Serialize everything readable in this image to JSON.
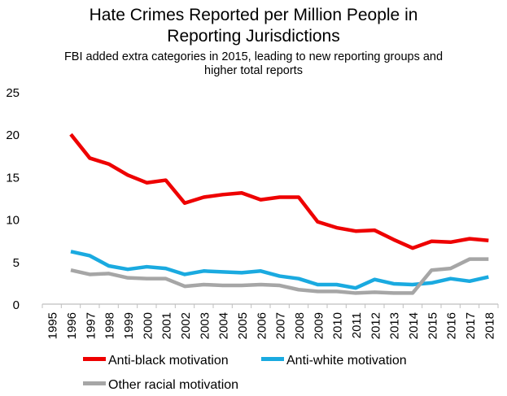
{
  "chart_data": {
    "type": "line",
    "title_line1": "Hate Crimes Reported per Million People in",
    "title_line2": "Reporting Jurisdictions",
    "subtitle_line1": "FBI added extra categories in 2015, leading to new reporting groups and",
    "subtitle_line2": "higher total reports",
    "x": [
      "1995",
      "1996",
      "1997",
      "1998",
      "1999",
      "2000",
      "2001",
      "2002",
      "2003",
      "2004",
      "2005",
      "2006",
      "2007",
      "2008",
      "2009",
      "2010",
      "2011",
      "2012",
      "2013",
      "2014",
      "2015",
      "2016",
      "2017",
      "2018"
    ],
    "ylim": [
      0,
      25
    ],
    "yticks": [
      0,
      5,
      10,
      15,
      20,
      25
    ],
    "grid": false,
    "legend_position": "bottom",
    "series": [
      {
        "name": "Anti-black motivation",
        "color": "#ee0000",
        "values": [
          null,
          20.0,
          17.2,
          16.5,
          15.2,
          14.3,
          14.6,
          11.9,
          12.6,
          12.9,
          13.1,
          12.3,
          12.6,
          12.6,
          9.7,
          9.0,
          8.6,
          8.7,
          7.6,
          6.6,
          7.4,
          7.3,
          7.7,
          7.5
        ]
      },
      {
        "name": "Anti-white motivation",
        "color": "#1aaae0",
        "values": [
          null,
          6.2,
          5.7,
          4.5,
          4.1,
          4.4,
          4.2,
          3.5,
          3.9,
          3.8,
          3.7,
          3.9,
          3.3,
          3.0,
          2.3,
          2.3,
          1.9,
          2.9,
          2.4,
          2.3,
          2.5,
          3.0,
          2.7,
          3.2
        ]
      },
      {
        "name": "Other racial motivation",
        "color": "#a6a6a6",
        "values": [
          null,
          4.0,
          3.5,
          3.6,
          3.1,
          3.0,
          3.0,
          2.1,
          2.3,
          2.2,
          2.2,
          2.3,
          2.2,
          1.7,
          1.5,
          1.5,
          1.3,
          1.4,
          1.3,
          1.3,
          4.0,
          4.2,
          5.3,
          5.3
        ]
      }
    ]
  }
}
